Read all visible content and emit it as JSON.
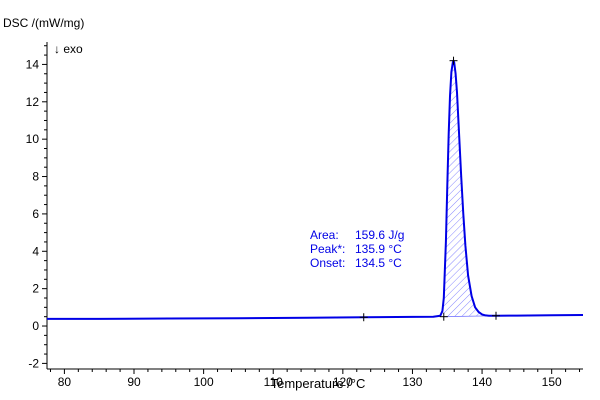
{
  "chart_data": {
    "type": "line",
    "ylabel": "DSC /(mW/mg)",
    "direction_label": "↓ exo",
    "xlabel": "Temperature /°C",
    "xlim": [
      77.5,
      154.5
    ],
    "ylim": [
      -2.3,
      15.2
    ],
    "x_ticks": [
      80,
      90,
      100,
      110,
      120,
      130,
      140,
      150
    ],
    "y_ticks": [
      -2,
      0,
      2,
      4,
      6,
      8,
      10,
      12,
      14
    ],
    "grid": false,
    "series": [
      {
        "color": "#0000e6",
        "x": [
          77.5,
          85,
          95,
          105,
          115,
          123,
          130,
          133,
          134,
          134.3,
          134.5,
          134.8,
          135.0,
          135.2,
          135.4,
          135.6,
          135.8,
          135.9,
          136.0,
          136.2,
          136.4,
          136.6,
          136.8,
          137.0,
          137.3,
          137.6,
          138.0,
          138.5,
          139.0,
          139.5,
          140.0,
          140.5,
          141.0,
          142.0,
          145,
          150,
          154.5
        ],
        "y": [
          0.38,
          0.38,
          0.4,
          0.42,
          0.44,
          0.47,
          0.49,
          0.5,
          0.55,
          0.8,
          1.5,
          4.5,
          7.5,
          10.3,
          12.3,
          13.6,
          14.1,
          14.2,
          14.1,
          13.5,
          12.5,
          11.0,
          9.5,
          8.0,
          6.0,
          4.3,
          2.7,
          1.6,
          1.0,
          0.75,
          0.62,
          0.57,
          0.55,
          0.55,
          0.56,
          0.58,
          0.59
        ]
      }
    ],
    "peak_area": {
      "from": 134.5,
      "to": 142.0,
      "baseline_y": [
        0.5,
        0.55
      ],
      "fill_color": "#0000e6",
      "hatch": true
    },
    "markers": [
      {
        "x": 123.0,
        "y": 0.47
      },
      {
        "x": 135.9,
        "y": 14.2
      },
      {
        "x": 142.0,
        "y": 0.55
      },
      {
        "x": 134.5,
        "y": 0.5
      }
    ],
    "annotation": {
      "color": "#0000e6",
      "rows": [
        {
          "label": "Area:",
          "value": "159.6 J/g"
        },
        {
          "label": "Peak*:",
          "value": "135.9 °C"
        },
        {
          "label": "Onset:",
          "value": "134.5 °C"
        }
      ]
    }
  }
}
